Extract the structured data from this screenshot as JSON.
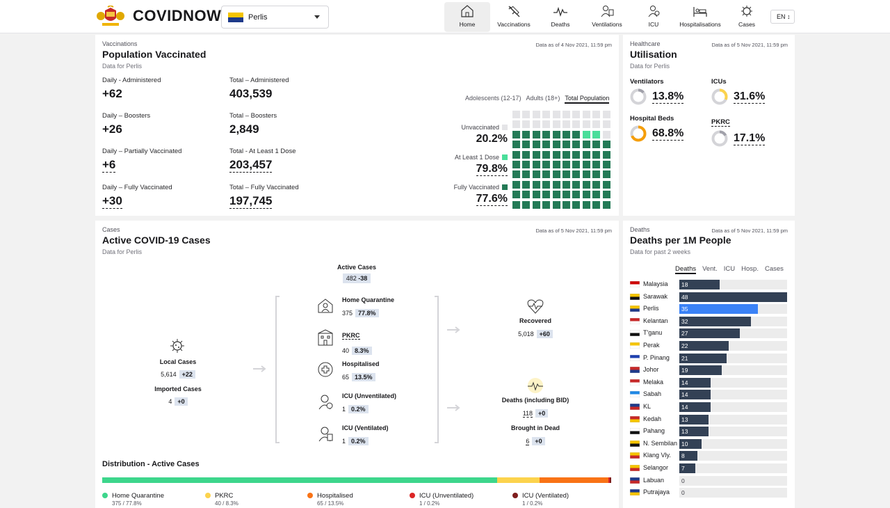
{
  "header": {
    "brand": "COVIDNOW",
    "state": "Perlis",
    "nav": [
      {
        "label": "Home",
        "icon": "home-icon",
        "active": true
      },
      {
        "label": "Vaccinations",
        "icon": "syringe-icon"
      },
      {
        "label": "Deaths",
        "icon": "pulse-icon"
      },
      {
        "label": "Ventilations",
        "icon": "ventilator-icon"
      },
      {
        "label": "ICU",
        "icon": "icu-icon"
      },
      {
        "label": "Hospitalisations",
        "icon": "hospital-bed-icon"
      },
      {
        "label": "Cases",
        "icon": "virus-icon"
      }
    ],
    "lang": "EN"
  },
  "vaccinations": {
    "sub": "Vaccinations",
    "title": "Population Vaccinated",
    "note": "Data for Perlis",
    "date": "Data as of 4 Nov 2021, 11:59 pm",
    "stats": [
      {
        "label": "Daily - Administered",
        "value": "+62"
      },
      {
        "label": "Total – Administered",
        "value": "403,539"
      },
      {
        "label": "Daily – Boosters",
        "value": "+26"
      },
      {
        "label": "Total – Boosters",
        "value": "2,849"
      },
      {
        "label": "Daily – Partially Vaccinated",
        "value": "+6"
      },
      {
        "label": "Total - At Least 1 Dose",
        "value": "203,457"
      },
      {
        "label": "Daily – Fully Vaccinated",
        "value": "+30"
      },
      {
        "label": "Total – Fully Vaccinated",
        "value": "197,745"
      }
    ],
    "tabs": [
      "Adolescents (12-17)",
      "Adults (18+)",
      "Total Population"
    ],
    "waffle": [
      {
        "label": "Unvaccinated",
        "pct": "20.2%"
      },
      {
        "label": "At Least 1 Dose",
        "pct": "79.8%"
      },
      {
        "label": "Fully Vaccinated",
        "pct": "77.6%"
      }
    ],
    "colors": {
      "unvaccinated": "#e4e4e7",
      "partial": "#4ade9a",
      "full": "#237a56"
    }
  },
  "utilisation": {
    "sub": "Healthcare",
    "title": "Utilisation",
    "note": "Data for Perlis",
    "date": "Data as of 5 Nov 2021, 11:59 pm",
    "items": [
      {
        "label": "Ventilators",
        "value": "13.8%",
        "pct": 13.8
      },
      {
        "label": "ICUs",
        "value": "31.6%",
        "pct": 31.6
      },
      {
        "label": "Hospital Beds",
        "value": "68.8%",
        "pct": 68.8
      },
      {
        "label": "PKRC",
        "value": "17.1%",
        "pct": 17.1
      }
    ]
  },
  "cases": {
    "sub": "Cases",
    "title": "Active COVID-19 Cases",
    "note": "Data for Perlis",
    "date": "Data as of 5 Nov 2021, 11:59 pm",
    "active": {
      "label": "Active Cases",
      "value": "482",
      "delta": "-38"
    },
    "local": {
      "label": "Local Cases",
      "value": "5,614",
      "delta": "+22"
    },
    "imported": {
      "label": "Imported Cases",
      "value": "4",
      "delta": "+0"
    },
    "middle": [
      {
        "label": "Home Quarantine",
        "value": "375",
        "pct": "77.8%"
      },
      {
        "label": "PKRC",
        "value": "40",
        "pct": "8.3%"
      },
      {
        "label": "Hospitalised",
        "value": "65",
        "pct": "13.5%"
      },
      {
        "label": "ICU (Unventilated)",
        "value": "1",
        "pct": "0.2%"
      },
      {
        "label": "ICU (Ventilated)",
        "value": "1",
        "pct": "0.2%"
      }
    ],
    "recovered": {
      "label": "Recovered",
      "value": "5,018",
      "delta": "+60"
    },
    "deaths": {
      "label": "Deaths (including BID)",
      "value": "118",
      "delta": "+0"
    },
    "bid": {
      "label": "Brought in Dead",
      "value": "6",
      "delta": "+0"
    },
    "distribution": {
      "title": "Distribution - Active Cases",
      "segments": [
        {
          "label": "Home Quarantine",
          "sub": "375 / 77.8%",
          "pct": 77.8,
          "color": "#3dd68c"
        },
        {
          "label": "PKRC",
          "sub": "40 / 8.3%",
          "pct": 8.3,
          "color": "#fcd34d"
        },
        {
          "label": "Hospitalised",
          "sub": "65 / 13.5%",
          "pct": 13.5,
          "color": "#f97316"
        },
        {
          "label": "ICU (Unventilated)",
          "sub": "1 / 0.2%",
          "pct": 0.2,
          "color": "#dc2626"
        },
        {
          "label": "ICU (Ventilated)",
          "sub": "1 / 0.2%",
          "pct": 0.2,
          "color": "#7f1d1d"
        }
      ]
    }
  },
  "deaths_per_m": {
    "sub": "Deaths",
    "title": "Deaths per 1M People",
    "note": "Data for past 2 weeks",
    "date": "Data as of 5 Nov 2021, 11:59 pm",
    "tabs": [
      "Deaths",
      "Vent.",
      "ICU",
      "Hosp.",
      "Cases"
    ],
    "max": 48,
    "rows": [
      {
        "state": "Malaysia",
        "value": 18
      },
      {
        "state": "Sarawak",
        "value": 48
      },
      {
        "state": "Perlis",
        "value": 35,
        "highlight": true
      },
      {
        "state": "Kelantan",
        "value": 32
      },
      {
        "state": "T'ganu",
        "value": 27
      },
      {
        "state": "Perak",
        "value": 22
      },
      {
        "state": "P. Pinang",
        "value": 21
      },
      {
        "state": "Johor",
        "value": 19
      },
      {
        "state": "Melaka",
        "value": 14
      },
      {
        "state": "Sabah",
        "value": 14
      },
      {
        "state": "KL",
        "value": 14
      },
      {
        "state": "Kedah",
        "value": 13
      },
      {
        "state": "Pahang",
        "value": 13
      },
      {
        "state": "N. Sembilan",
        "value": 10
      },
      {
        "state": "Klang Vly.",
        "value": 8
      },
      {
        "state": "Selangor",
        "value": 7
      },
      {
        "state": "Labuan",
        "value": 0
      },
      {
        "state": "Putrajaya",
        "value": 0
      }
    ],
    "colors": {
      "bar": "#334155",
      "highlight": "#3b82f6",
      "track": "#ececec"
    }
  }
}
